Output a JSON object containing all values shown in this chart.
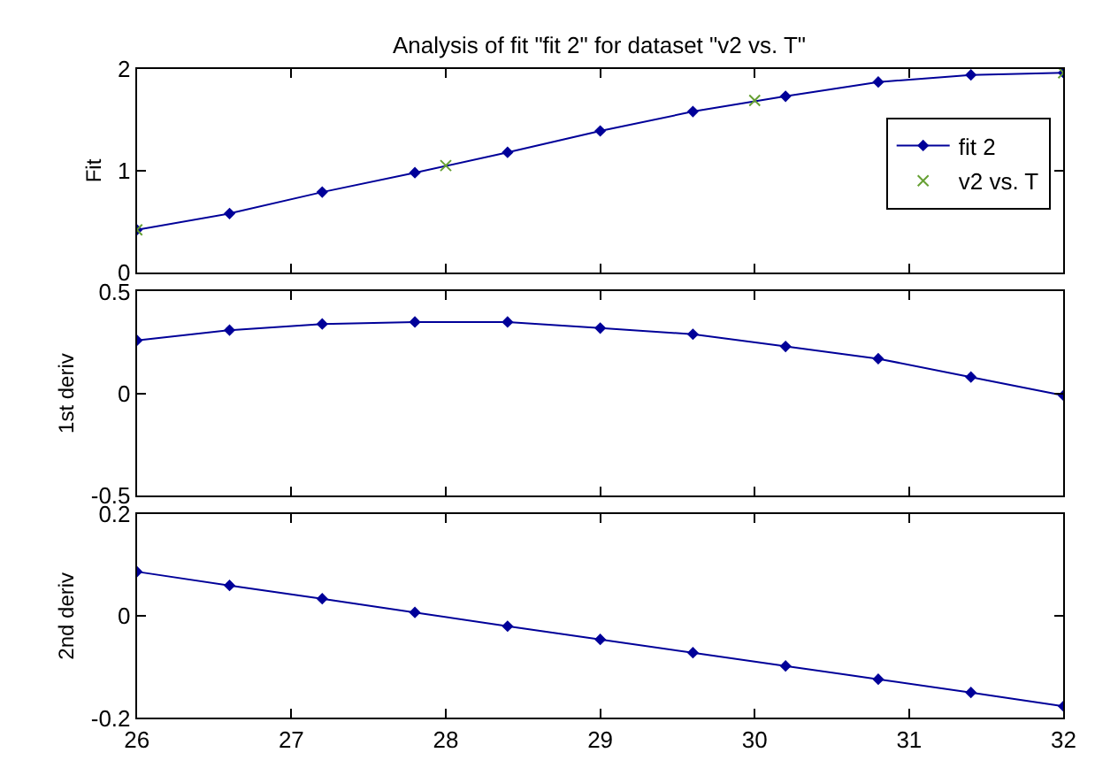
{
  "chart_data": [
    {
      "type": "line",
      "title": "Analysis of fit \"fit 2\" for dataset \"v2 vs. T\"",
      "ylabel": "Fit",
      "xlim": [
        26,
        32
      ],
      "xticks": [
        26,
        27,
        28,
        29,
        30,
        31,
        32
      ],
      "ylim": [
        0,
        2
      ],
      "yticks": [
        0,
        1,
        2
      ],
      "tick_labels": "y",
      "legend": "right",
      "series": [
        {
          "name": "fit 2",
          "color": "#000099",
          "marker": "diamond",
          "x": [
            26,
            26.6,
            27.2,
            27.8,
            28.4,
            29,
            29.6,
            30.2,
            30.8,
            31.4,
            32
          ],
          "values": [
            0.42,
            0.58,
            0.79,
            0.98,
            1.18,
            1.39,
            1.58,
            1.73,
            1.87,
            1.94,
            1.96
          ]
        },
        {
          "name": "v2 vs. T",
          "type": "scatter",
          "color": "#66a033",
          "marker": "cross",
          "x": [
            26,
            28,
            30,
            32
          ],
          "values": [
            0.42,
            1.05,
            1.69,
            1.96
          ]
        }
      ]
    },
    {
      "type": "line",
      "ylabel": "1st deriv",
      "xlim": [
        26,
        32
      ],
      "xticks": [
        26,
        27,
        28,
        29,
        30,
        31,
        32
      ],
      "ylim": [
        -0.5,
        0.5
      ],
      "yticks": [
        -0.5,
        0,
        0.5
      ],
      "tick_labels": "y",
      "series": [
        {
          "color": "#000099",
          "marker": "diamond",
          "x": [
            26,
            26.6,
            27.2,
            27.8,
            28.4,
            29,
            29.6,
            30.2,
            30.8,
            31.4,
            32
          ],
          "values": [
            0.26,
            0.31,
            0.34,
            0.35,
            0.35,
            0.32,
            0.29,
            0.23,
            0.17,
            0.08,
            -0.01
          ]
        }
      ]
    },
    {
      "type": "line",
      "ylabel": "2nd deriv",
      "xlim": [
        26,
        32
      ],
      "xticks": [
        26,
        27,
        28,
        29,
        30,
        31,
        32
      ],
      "ylim": [
        -0.2,
        0.2
      ],
      "yticks": [
        -0.2,
        0,
        0.2
      ],
      "series": [
        {
          "color": "#000099",
          "marker": "diamond",
          "x": [
            26,
            26.6,
            27.2,
            27.8,
            28.4,
            29,
            29.6,
            30.2,
            30.8,
            31.4,
            32
          ],
          "values": [
            0.087,
            0.06,
            0.034,
            0.007,
            -0.02,
            -0.046,
            -0.072,
            -0.098,
            -0.124,
            -0.15,
            -0.177
          ]
        }
      ]
    }
  ]
}
